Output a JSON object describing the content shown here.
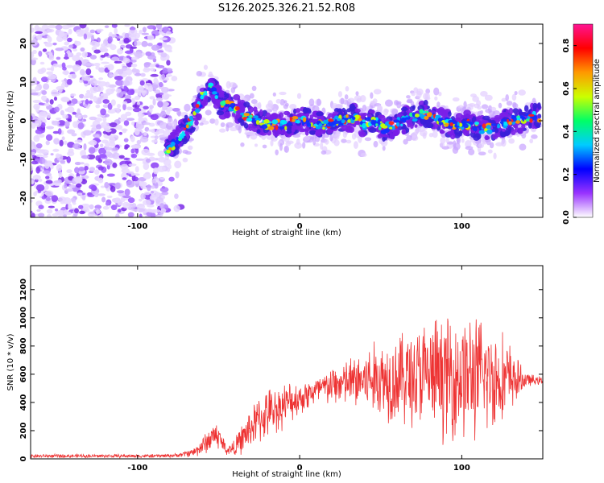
{
  "title": "S126.2025.326.21.52.R08",
  "chart_data": [
    {
      "type": "heatmap",
      "name": "spectrogram",
      "xlabel": "Height of straight line (km)",
      "ylabel": "Frequency (Hz)",
      "xlim": [
        -166,
        150
      ],
      "ylim": [
        -25,
        25
      ],
      "xticks": [
        -100,
        0,
        100
      ],
      "xtick_labels": [
        "-100",
        "0",
        "100"
      ],
      "yticks": [
        -20,
        -10,
        0,
        10,
        20
      ],
      "ytick_labels": [
        "-20",
        "-10",
        "0",
        "10",
        "20"
      ],
      "noise_region_x": [
        -166,
        -80
      ],
      "ridge": {
        "x": [
          -82,
          -76,
          -70,
          -64,
          -58,
          -54,
          -48,
          -44,
          -38,
          -32,
          -26,
          -20,
          -14,
          -8,
          -2,
          4,
          10,
          16,
          22,
          28,
          34,
          40,
          46,
          52,
          58,
          64,
          70,
          76,
          82,
          88,
          94,
          100,
          106,
          112,
          118,
          124,
          130,
          136,
          142,
          148
        ],
        "y": [
          -8,
          -5,
          -2,
          2,
          8,
          9,
          4,
          4,
          3,
          1,
          0,
          -1,
          -1,
          -1,
          0,
          0,
          -1,
          -1,
          0,
          0,
          1,
          -1,
          0,
          -2,
          -1,
          0,
          1,
          2,
          1,
          0,
          -1,
          -1,
          -1,
          -2,
          -2,
          -1,
          0,
          0,
          1,
          1
        ]
      },
      "colorbar": {
        "label": "Normalized spectral amplitude",
        "range": [
          0,
          0.9
        ],
        "ticks": [
          0,
          0.2,
          0.4,
          0.6,
          0.8
        ],
        "tick_labels": [
          "0.0",
          "0.2",
          "0.4",
          "0.6",
          "0.8"
        ],
        "colormap": [
          "#ffffff",
          "#9933ff",
          "#0000ff",
          "#00ccff",
          "#00ff66",
          "#ccff00",
          "#ff9900",
          "#ff0000",
          "#ff1493"
        ]
      }
    },
    {
      "type": "line",
      "name": "snr",
      "xlabel": "Height of straight line (km)",
      "ylabel": "SNR (10 * v/v)",
      "xlim": [
        -166,
        150
      ],
      "ylim": [
        0,
        1370
      ],
      "xticks": [
        -100,
        0,
        100
      ],
      "xtick_labels": [
        "-100",
        "0",
        "100"
      ],
      "yticks": [
        0,
        200,
        400,
        600,
        800,
        1000,
        1200
      ],
      "ytick_labels": [
        "0",
        "200",
        "400",
        "600",
        "800",
        "1000",
        "1200"
      ],
      "color": "#ee3333",
      "series": {
        "x": [
          -166,
          -150,
          -130,
          -110,
          -90,
          -75,
          -65,
          -58,
          -52,
          -48,
          -45,
          -40,
          -35,
          -30,
          -25,
          -20,
          -15,
          -10,
          -5,
          0,
          5,
          10,
          15,
          20,
          25,
          30,
          35,
          40,
          45,
          50,
          55,
          60,
          65,
          70,
          75,
          80,
          85,
          90,
          95,
          100,
          105,
          110,
          115,
          120,
          125,
          130,
          135,
          140,
          145,
          150
        ],
        "y": [
          20,
          20,
          20,
          20,
          20,
          25,
          50,
          110,
          180,
          120,
          60,
          80,
          150,
          220,
          280,
          320,
          350,
          380,
          410,
          430,
          460,
          480,
          500,
          520,
          530,
          540,
          550,
          560,
          560,
          570,
          570,
          575,
          580,
          580,
          585,
          585,
          590,
          590,
          590,
          590,
          585,
          580,
          580,
          575,
          570,
          565,
          560,
          560,
          555,
          555
        ],
        "noise_amp": [
          15,
          15,
          15,
          15,
          15,
          15,
          40,
          90,
          120,
          80,
          40,
          70,
          130,
          170,
          200,
          200,
          190,
          180,
          160,
          140,
          130,
          130,
          140,
          160,
          180,
          200,
          240,
          280,
          300,
          330,
          360,
          380,
          400,
          430,
          450,
          460,
          480,
          500,
          520,
          530,
          520,
          500,
          470,
          430,
          380,
          300,
          150,
          60,
          40,
          30
        ]
      }
    }
  ]
}
